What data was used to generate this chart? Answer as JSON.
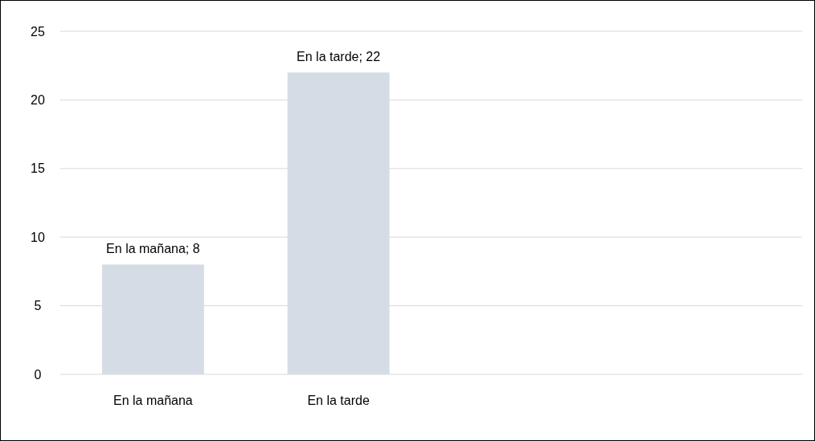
{
  "chart_data": {
    "type": "bar",
    "categories": [
      "En la mañana",
      "En la tarde",
      null,
      null
    ],
    "values": [
      8,
      22,
      null,
      null
    ],
    "color": "#d6dce5",
    "value_labels": [
      "En la mañana; 8",
      "En la tarde; 22",
      null,
      null
    ],
    "ylim": [
      0,
      25
    ],
    "yticks": [
      0,
      5,
      10,
      15,
      20,
      25
    ],
    "grid": "y"
  }
}
